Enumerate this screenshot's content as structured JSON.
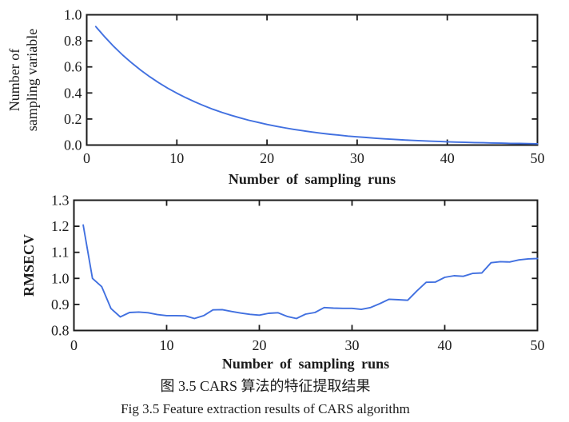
{
  "figure": {
    "caption_zh": "图 3.5 CARS 算法的特征提取结果",
    "caption_en": "Fig 3.5 Feature extraction results of CARS algorithm"
  },
  "colors": {
    "line": "#4170e0",
    "axis": "#1b1b1b",
    "text": "#1b1b1b"
  },
  "chart_data": [
    {
      "id": "sampling-variables",
      "type": "line",
      "title": "",
      "xlabel": "Number of sampling runs",
      "ylabel_lines": [
        "Number of",
        "sampling variable"
      ],
      "xlim": [
        0,
        50
      ],
      "ylim": [
        0.0,
        1.0
      ],
      "xticks": [
        0,
        10,
        20,
        30,
        40,
        50
      ],
      "xtick_labels": [
        "0",
        "10",
        "20",
        "30",
        "40",
        "50"
      ],
      "yticks": [
        0.0,
        0.2,
        0.4,
        0.6,
        0.8,
        1.0
      ],
      "ytick_labels": [
        "0.0",
        "0.2",
        "0.4",
        "0.6",
        "0.8",
        "1.0"
      ],
      "grid": false,
      "legend": null,
      "x": [
        1,
        2,
        3,
        4,
        5,
        6,
        7,
        8,
        9,
        10,
        11,
        12,
        13,
        14,
        15,
        16,
        17,
        18,
        19,
        20,
        21,
        22,
        23,
        24,
        25,
        26,
        27,
        28,
        29,
        30,
        31,
        32,
        33,
        34,
        35,
        36,
        37,
        38,
        39,
        40,
        41,
        42,
        43,
        44,
        45,
        46,
        47,
        48,
        49,
        50
      ],
      "y": [
        0.91,
        0.83,
        0.757,
        0.69,
        0.63,
        0.574,
        0.524,
        0.478,
        0.436,
        0.398,
        0.363,
        0.331,
        0.302,
        0.275,
        0.251,
        0.229,
        0.209,
        0.19,
        0.174,
        0.158,
        0.145,
        0.132,
        0.12,
        0.11,
        0.1,
        0.091,
        0.083,
        0.076,
        0.069,
        0.063,
        0.058,
        0.053,
        0.048,
        0.044,
        0.04,
        0.036,
        0.033,
        0.03,
        0.028,
        0.025,
        0.023,
        0.021,
        0.019,
        0.018,
        0.016,
        0.015,
        0.013,
        0.012,
        0.011,
        0.01
      ]
    },
    {
      "id": "rmsecv",
      "type": "line",
      "title": "",
      "xlabel": "Number of sampling runs",
      "ylabel": "RMSECV",
      "xlim": [
        0,
        50
      ],
      "ylim": [
        0.8,
        1.3
      ],
      "xticks": [
        0,
        10,
        20,
        30,
        40,
        50
      ],
      "xtick_labels": [
        "0",
        "10",
        "20",
        "30",
        "40",
        "50"
      ],
      "yticks": [
        0.8,
        0.9,
        1.0,
        1.1,
        1.2,
        1.3
      ],
      "ytick_labels": [
        "0.8",
        "0.9",
        "1.0",
        "1.1",
        "1.2",
        "1.3"
      ],
      "grid": false,
      "legend": null,
      "x": [
        1,
        2,
        3,
        4,
        5,
        6,
        7,
        8,
        9,
        10,
        11,
        12,
        13,
        14,
        15,
        16,
        17,
        18,
        19,
        20,
        21,
        22,
        23,
        24,
        25,
        26,
        27,
        28,
        29,
        30,
        31,
        32,
        33,
        34,
        35,
        36,
        37,
        38,
        39,
        40,
        41,
        42,
        43,
        44,
        45,
        46,
        47,
        48,
        49,
        50
      ],
      "y": [
        1.205,
        1.0,
        0.968,
        0.884,
        0.852,
        0.869,
        0.871,
        0.868,
        0.861,
        0.857,
        0.857,
        0.856,
        0.846,
        0.857,
        0.879,
        0.88,
        0.873,
        0.867,
        0.862,
        0.859,
        0.866,
        0.868,
        0.854,
        0.846,
        0.863,
        0.869,
        0.888,
        0.886,
        0.885,
        0.885,
        0.881,
        0.888,
        0.903,
        0.92,
        0.918,
        0.916,
        0.952,
        0.985,
        0.986,
        1.004,
        1.01,
        1.008,
        1.019,
        1.021,
        1.06,
        1.064,
        1.063,
        1.071,
        1.075,
        1.076
      ]
    }
  ]
}
